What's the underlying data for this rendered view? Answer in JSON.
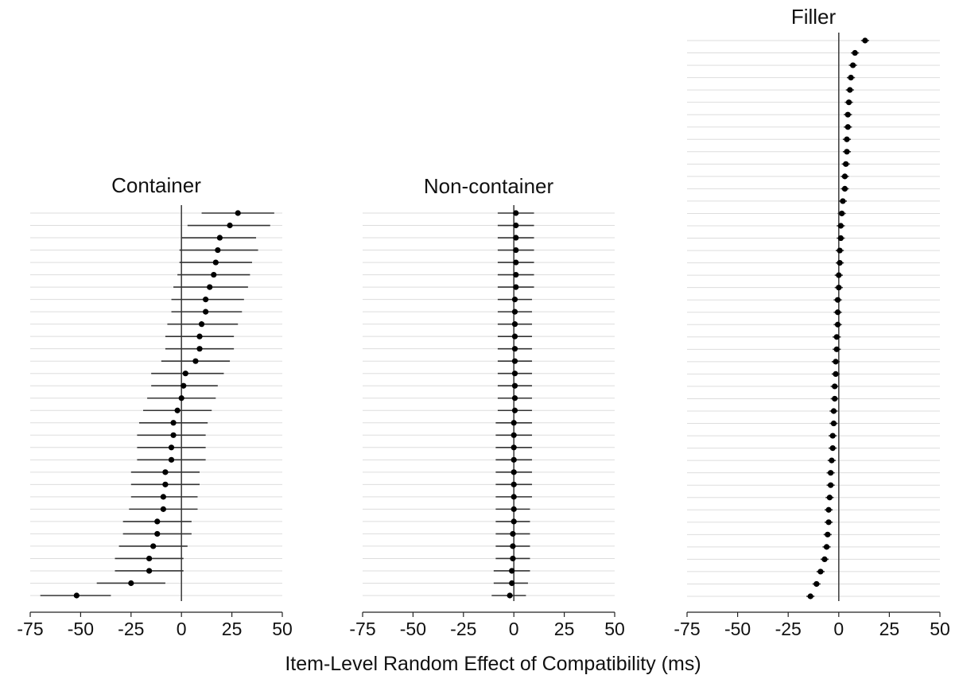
{
  "chart_data": [
    {
      "type": "scatter",
      "title": "Container",
      "xlim": [
        -75,
        50
      ],
      "xticks": [
        -75,
        -50,
        -25,
        0,
        25,
        50
      ],
      "tick_labels": [
        "-75",
        "-50",
        "-25",
        "0",
        "25",
        "50"
      ],
      "error_bars": true,
      "points": [
        {
          "estimate": 28,
          "lo": 10,
          "hi": 46
        },
        {
          "estimate": 24,
          "lo": 3,
          "hi": 44
        },
        {
          "estimate": 19,
          "lo": 0,
          "hi": 37
        },
        {
          "estimate": 18,
          "lo": -1,
          "hi": 38
        },
        {
          "estimate": 17,
          "lo": -1,
          "hi": 35
        },
        {
          "estimate": 16,
          "lo": -2,
          "hi": 34
        },
        {
          "estimate": 14,
          "lo": -4,
          "hi": 33
        },
        {
          "estimate": 12,
          "lo": -5,
          "hi": 31
        },
        {
          "estimate": 12,
          "lo": -5,
          "hi": 30
        },
        {
          "estimate": 10,
          "lo": -7,
          "hi": 28
        },
        {
          "estimate": 9,
          "lo": -8,
          "hi": 26
        },
        {
          "estimate": 9,
          "lo": -8,
          "hi": 26
        },
        {
          "estimate": 7,
          "lo": -10,
          "hi": 24
        },
        {
          "estimate": 2,
          "lo": -15,
          "hi": 21
        },
        {
          "estimate": 1,
          "lo": -15,
          "hi": 18
        },
        {
          "estimate": 0,
          "lo": -17,
          "hi": 17
        },
        {
          "estimate": -2,
          "lo": -19,
          "hi": 15
        },
        {
          "estimate": -4,
          "lo": -21,
          "hi": 13
        },
        {
          "estimate": -4,
          "lo": -22,
          "hi": 12
        },
        {
          "estimate": -5,
          "lo": -22,
          "hi": 12
        },
        {
          "estimate": -5,
          "lo": -22,
          "hi": 12
        },
        {
          "estimate": -8,
          "lo": -25,
          "hi": 9
        },
        {
          "estimate": -8,
          "lo": -25,
          "hi": 9
        },
        {
          "estimate": -9,
          "lo": -25,
          "hi": 8
        },
        {
          "estimate": -9,
          "lo": -26,
          "hi": 8
        },
        {
          "estimate": -12,
          "lo": -29,
          "hi": 5
        },
        {
          "estimate": -12,
          "lo": -29,
          "hi": 5
        },
        {
          "estimate": -14,
          "lo": -31,
          "hi": 3
        },
        {
          "estimate": -16,
          "lo": -33,
          "hi": 1
        },
        {
          "estimate": -16,
          "lo": -33,
          "hi": 1
        },
        {
          "estimate": -25,
          "lo": -42,
          "hi": -8
        },
        {
          "estimate": -52,
          "lo": -70,
          "hi": -35
        }
      ]
    },
    {
      "type": "scatter",
      "title": "Non-container",
      "xlim": [
        -75,
        50
      ],
      "xticks": [
        -75,
        -50,
        -25,
        0,
        25,
        50
      ],
      "tick_labels": [
        "-75",
        "-50",
        "-25",
        "0",
        "25",
        "50"
      ],
      "error_bars": true,
      "points": [
        {
          "estimate": 1,
          "lo": -8,
          "hi": 10
        },
        {
          "estimate": 1,
          "lo": -8,
          "hi": 10
        },
        {
          "estimate": 1,
          "lo": -8,
          "hi": 10
        },
        {
          "estimate": 1,
          "lo": -8,
          "hi": 10
        },
        {
          "estimate": 1,
          "lo": -8,
          "hi": 10
        },
        {
          "estimate": 1,
          "lo": -8,
          "hi": 10
        },
        {
          "estimate": 1,
          "lo": -8,
          "hi": 10
        },
        {
          "estimate": 0.5,
          "lo": -8,
          "hi": 9
        },
        {
          "estimate": 0.5,
          "lo": -8,
          "hi": 9
        },
        {
          "estimate": 0.5,
          "lo": -8,
          "hi": 9
        },
        {
          "estimate": 0.5,
          "lo": -8,
          "hi": 9
        },
        {
          "estimate": 0.5,
          "lo": -8,
          "hi": 9
        },
        {
          "estimate": 0.5,
          "lo": -8,
          "hi": 9
        },
        {
          "estimate": 0.5,
          "lo": -8,
          "hi": 9
        },
        {
          "estimate": 0.5,
          "lo": -8,
          "hi": 9
        },
        {
          "estimate": 0.5,
          "lo": -8,
          "hi": 9
        },
        {
          "estimate": 0.5,
          "lo": -8,
          "hi": 9
        },
        {
          "estimate": 0,
          "lo": -9,
          "hi": 9
        },
        {
          "estimate": 0,
          "lo": -9,
          "hi": 9
        },
        {
          "estimate": 0,
          "lo": -9,
          "hi": 9
        },
        {
          "estimate": 0,
          "lo": -9,
          "hi": 9
        },
        {
          "estimate": 0,
          "lo": -9,
          "hi": 9
        },
        {
          "estimate": 0,
          "lo": -9,
          "hi": 9
        },
        {
          "estimate": 0,
          "lo": -9,
          "hi": 9
        },
        {
          "estimate": 0,
          "lo": -9,
          "hi": 8
        },
        {
          "estimate": 0,
          "lo": -9,
          "hi": 8
        },
        {
          "estimate": -0.5,
          "lo": -9,
          "hi": 8
        },
        {
          "estimate": -0.5,
          "lo": -9,
          "hi": 8
        },
        {
          "estimate": -0.5,
          "lo": -9,
          "hi": 8
        },
        {
          "estimate": -1,
          "lo": -10,
          "hi": 8
        },
        {
          "estimate": -1,
          "lo": -10,
          "hi": 7
        },
        {
          "estimate": -2,
          "lo": -11,
          "hi": 6
        }
      ]
    },
    {
      "type": "scatter",
      "title": "Filler",
      "xlim": [
        -75,
        50
      ],
      "xticks": [
        -75,
        -50,
        -25,
        0,
        25,
        50
      ],
      "tick_labels": [
        "-75",
        "-50",
        "-25",
        "0",
        "25",
        "50"
      ],
      "error_bars": true,
      "points": [
        {
          "estimate": 13,
          "lo": 11,
          "hi": 15
        },
        {
          "estimate": 8,
          "lo": 6,
          "hi": 10
        },
        {
          "estimate": 7,
          "lo": 5,
          "hi": 9
        },
        {
          "estimate": 6,
          "lo": 4,
          "hi": 8
        },
        {
          "estimate": 5.5,
          "lo": 3.5,
          "hi": 7.5
        },
        {
          "estimate": 5,
          "lo": 3,
          "hi": 7
        },
        {
          "estimate": 4.5,
          "lo": 2.5,
          "hi": 6.5
        },
        {
          "estimate": 4.5,
          "lo": 2.5,
          "hi": 6.5
        },
        {
          "estimate": 4,
          "lo": 2,
          "hi": 6
        },
        {
          "estimate": 4,
          "lo": 2,
          "hi": 6
        },
        {
          "estimate": 3.5,
          "lo": 1.5,
          "hi": 5.5
        },
        {
          "estimate": 3,
          "lo": 1,
          "hi": 5
        },
        {
          "estimate": 3,
          "lo": 1,
          "hi": 5
        },
        {
          "estimate": 2,
          "lo": 0,
          "hi": 4
        },
        {
          "estimate": 1.5,
          "lo": -0.5,
          "hi": 3.5
        },
        {
          "estimate": 1,
          "lo": -1,
          "hi": 3
        },
        {
          "estimate": 1,
          "lo": -1,
          "hi": 3
        },
        {
          "estimate": 0.5,
          "lo": -1.5,
          "hi": 2.5
        },
        {
          "estimate": 0.5,
          "lo": -1.5,
          "hi": 2.5
        },
        {
          "estimate": 0,
          "lo": -2,
          "hi": 2
        },
        {
          "estimate": 0,
          "lo": -2,
          "hi": 2
        },
        {
          "estimate": -0.5,
          "lo": -2.5,
          "hi": 1.5
        },
        {
          "estimate": -0.5,
          "lo": -2.5,
          "hi": 1.5
        },
        {
          "estimate": -0.5,
          "lo": -2.5,
          "hi": 1.5
        },
        {
          "estimate": -1,
          "lo": -3,
          "hi": 1
        },
        {
          "estimate": -1,
          "lo": -3,
          "hi": 1
        },
        {
          "estimate": -1.5,
          "lo": -3.5,
          "hi": 0.5
        },
        {
          "estimate": -1.5,
          "lo": -3.5,
          "hi": 0.5
        },
        {
          "estimate": -2,
          "lo": -4,
          "hi": 0
        },
        {
          "estimate": -2,
          "lo": -4,
          "hi": 0
        },
        {
          "estimate": -2.5,
          "lo": -4.5,
          "hi": -0.5
        },
        {
          "estimate": -2.5,
          "lo": -4.5,
          "hi": -0.5
        },
        {
          "estimate": -3,
          "lo": -5,
          "hi": -1
        },
        {
          "estimate": -3,
          "lo": -5,
          "hi": -1
        },
        {
          "estimate": -3.5,
          "lo": -5.5,
          "hi": -1.5
        },
        {
          "estimate": -4,
          "lo": -6,
          "hi": -2
        },
        {
          "estimate": -4,
          "lo": -6,
          "hi": -2
        },
        {
          "estimate": -4.5,
          "lo": -6.5,
          "hi": -2.5
        },
        {
          "estimate": -5,
          "lo": -7,
          "hi": -3
        },
        {
          "estimate": -5,
          "lo": -7,
          "hi": -3
        },
        {
          "estimate": -5.5,
          "lo": -7.5,
          "hi": -3.5
        },
        {
          "estimate": -6,
          "lo": -8,
          "hi": -4
        },
        {
          "estimate": -7,
          "lo": -9,
          "hi": -5
        },
        {
          "estimate": -9,
          "lo": -11,
          "hi": -7
        },
        {
          "estimate": -11,
          "lo": -13,
          "hi": -9
        },
        {
          "estimate": -14,
          "lo": -16,
          "hi": -12
        }
      ]
    }
  ],
  "xlabel": "Item-Level Random Effect of Compatibility (ms)",
  "colors": {
    "point": "#000000",
    "error_bar": "#333333",
    "row_guide": "#dddddd",
    "zero_line": "#444444",
    "axis": "#222222"
  }
}
